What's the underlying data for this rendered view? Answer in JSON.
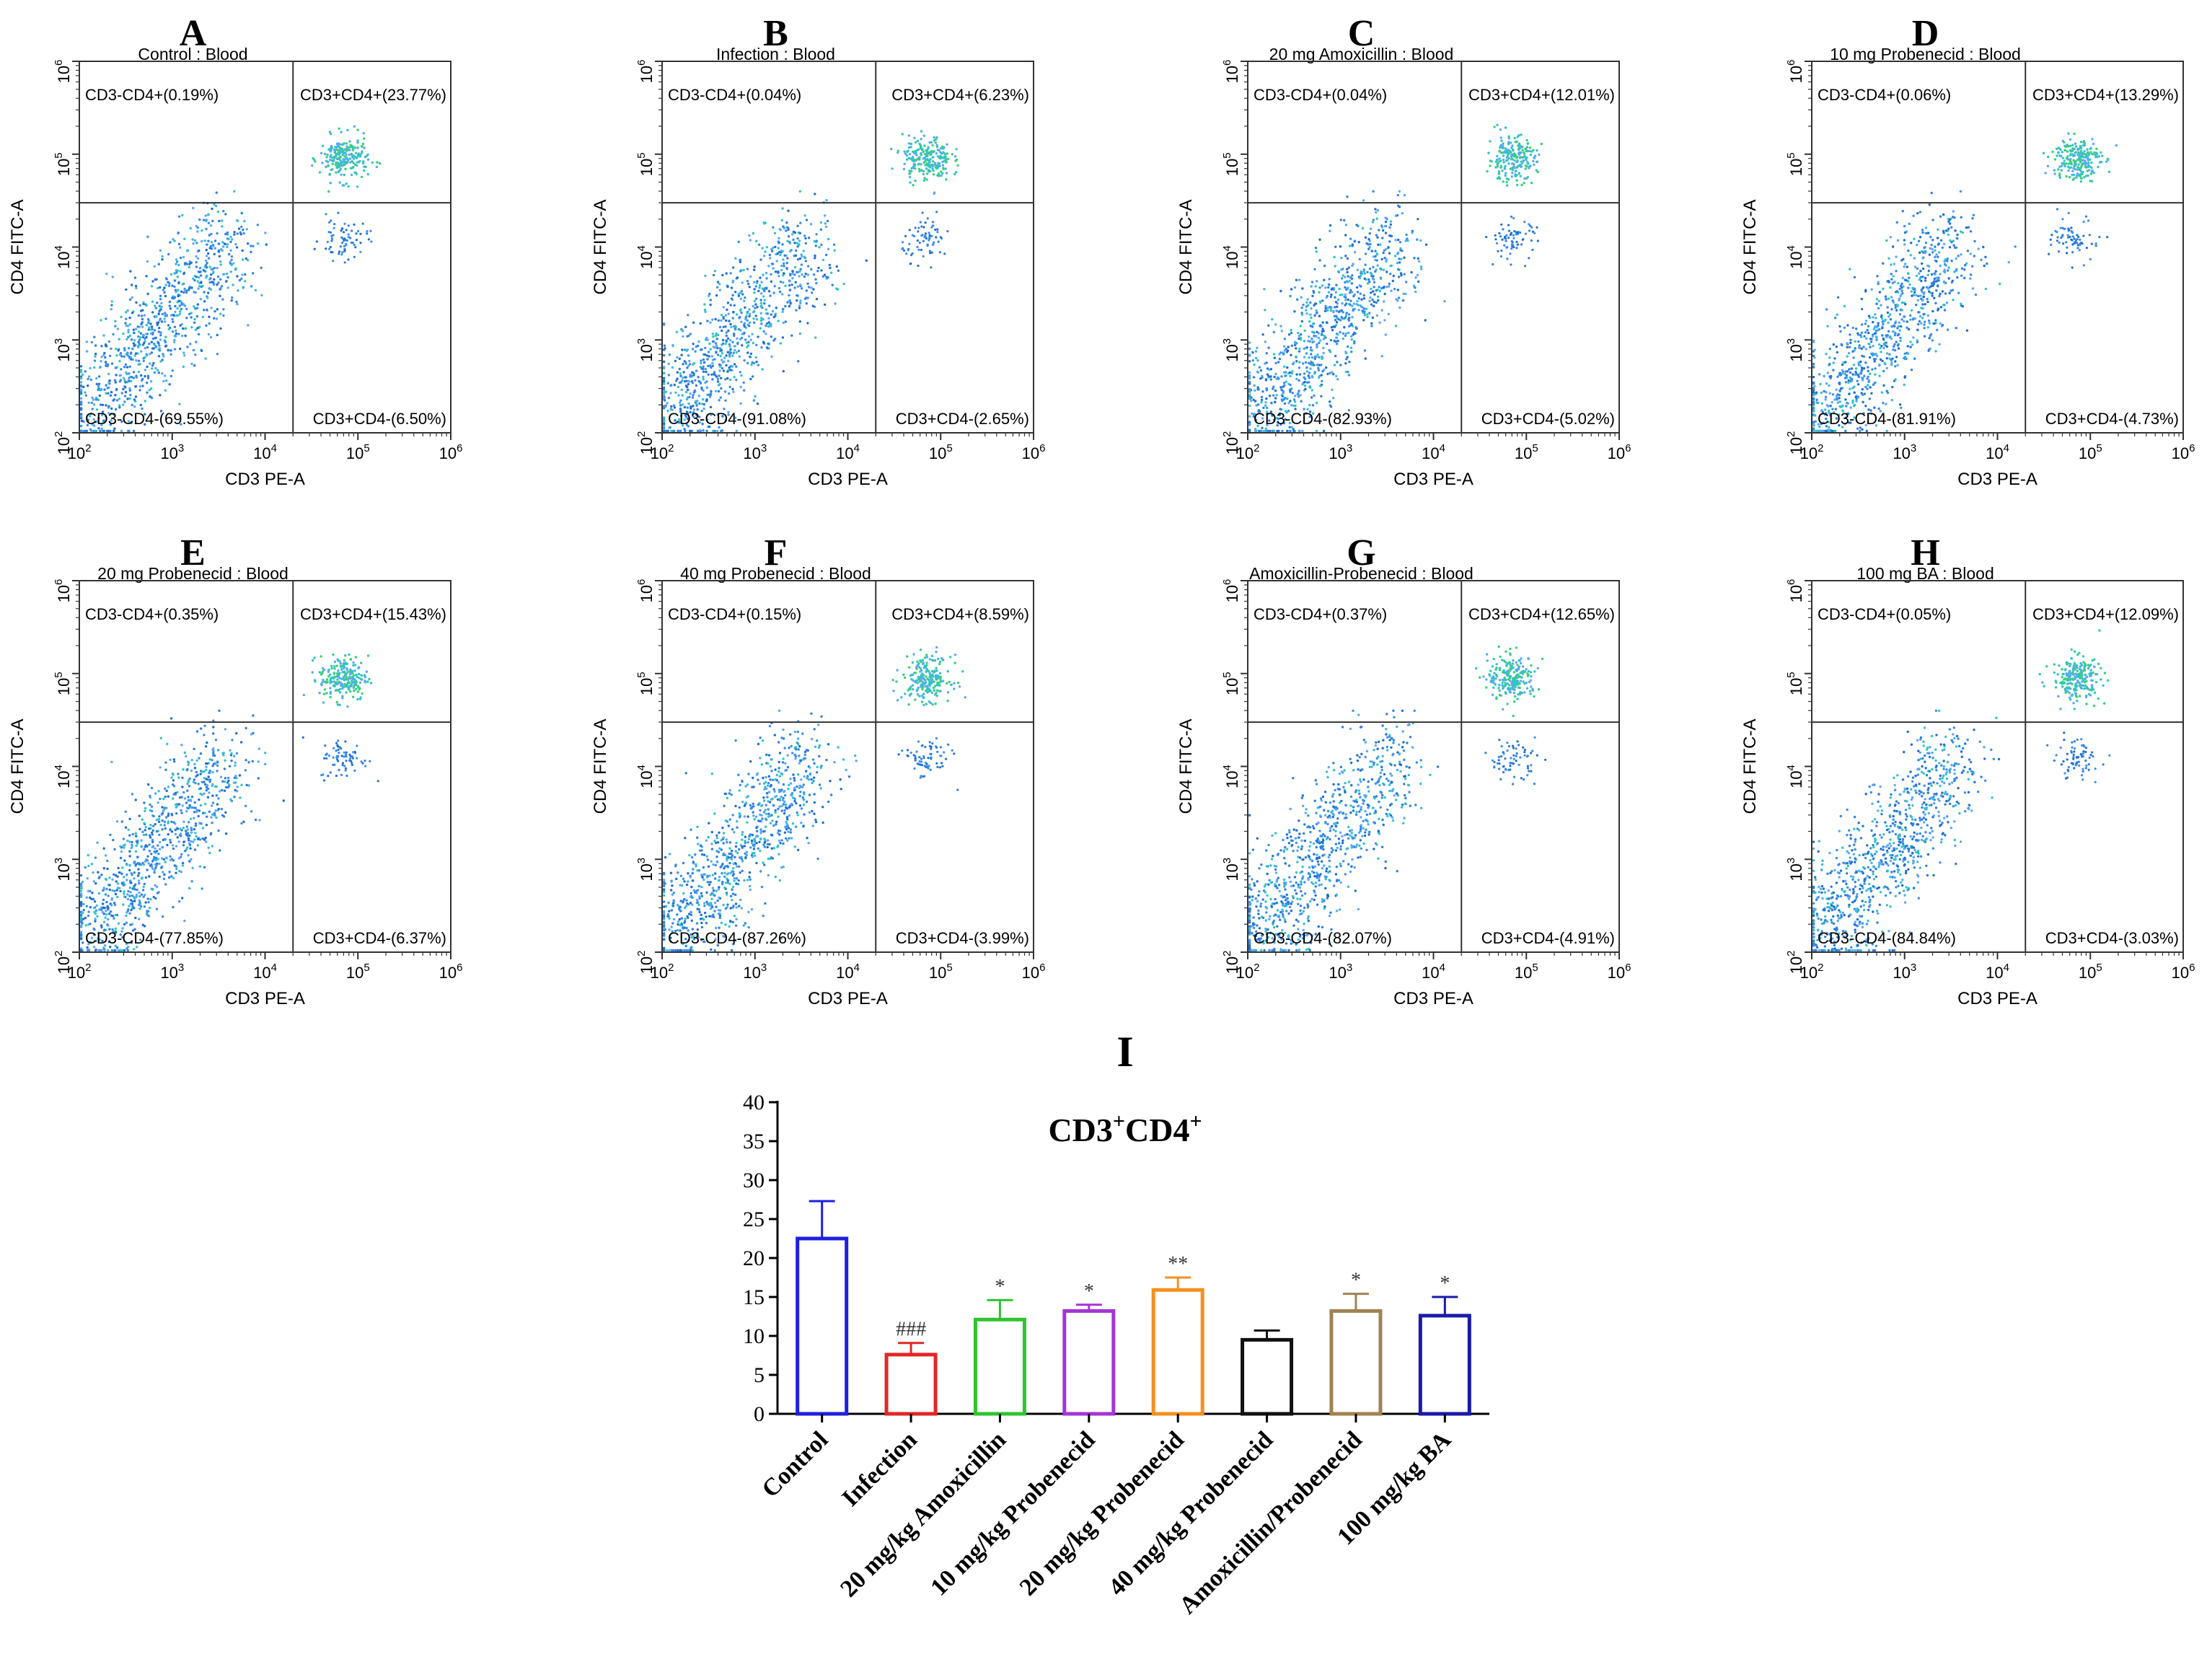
{
  "chart_data": [
    {
      "type": "scatter",
      "panel_letter": "A",
      "title": "Control : Blood",
      "xlabel": "CD3 PE-A",
      "ylabel": "CD4 FITC-A",
      "x_ticks": [
        "10",
        "10",
        "10",
        "10",
        "10"
      ],
      "x_tick_exps": [
        "2",
        "3",
        "4",
        "5",
        "6"
      ],
      "y_ticks": [
        "10",
        "10",
        "10",
        "10",
        "10"
      ],
      "y_tick_exps": [
        "2",
        "3",
        "4",
        "5",
        "6"
      ],
      "axis_scale": "log",
      "xlim": [
        100,
        1000000
      ],
      "ylim": [
        100,
        1000000
      ],
      "gates": {
        "x": 20000,
        "y": 30000
      },
      "quadrants": {
        "top_left": "CD3-CD4+(0.19%)",
        "top_right": "CD3+CD4+(23.77%)",
        "bottom_left": "CD3-CD4-(69.55%)",
        "bottom_right": "CD3+CD4-(6.50%)"
      }
    },
    {
      "type": "scatter",
      "panel_letter": "B",
      "title": "Infection : Blood",
      "xlabel": "CD3 PE-A",
      "ylabel": "CD4 FITC-A",
      "x_ticks": [
        "10",
        "10",
        "10",
        "10",
        "10"
      ],
      "x_tick_exps": [
        "2",
        "3",
        "4",
        "5",
        "6"
      ],
      "y_ticks": [
        "10",
        "10",
        "10",
        "10",
        "10"
      ],
      "y_tick_exps": [
        "2",
        "3",
        "4",
        "5",
        "6"
      ],
      "axis_scale": "log",
      "xlim": [
        100,
        1000000
      ],
      "ylim": [
        100,
        1000000
      ],
      "gates": {
        "x": 20000,
        "y": 30000
      },
      "quadrants": {
        "top_left": "CD3-CD4+(0.04%)",
        "top_right": "CD3+CD4+(6.23%)",
        "bottom_left": "CD3-CD4-(91.08%)",
        "bottom_right": "CD3+CD4-(2.65%)"
      }
    },
    {
      "type": "scatter",
      "panel_letter": "C",
      "title": "20 mg Amoxicillin : Blood",
      "xlabel": "CD3 PE-A",
      "ylabel": "CD4 FITC-A",
      "x_ticks": [
        "10",
        "10",
        "10",
        "10",
        "10"
      ],
      "x_tick_exps": [
        "2",
        "3",
        "4",
        "5",
        "6"
      ],
      "y_ticks": [
        "10",
        "10",
        "10",
        "10",
        "10"
      ],
      "y_tick_exps": [
        "2",
        "3",
        "4",
        "5",
        "6"
      ],
      "axis_scale": "log",
      "xlim": [
        100,
        1000000
      ],
      "ylim": [
        100,
        1000000
      ],
      "gates": {
        "x": 20000,
        "y": 30000
      },
      "quadrants": {
        "top_left": "CD3-CD4+(0.04%)",
        "top_right": "CD3+CD4+(12.01%)",
        "bottom_left": "CD3-CD4-(82.93%)",
        "bottom_right": "CD3+CD4-(5.02%)"
      }
    },
    {
      "type": "scatter",
      "panel_letter": "D",
      "title": "10 mg Probenecid : Blood",
      "xlabel": "CD3 PE-A",
      "ylabel": "CD4 FITC-A",
      "x_ticks": [
        "10",
        "10",
        "10",
        "10",
        "10"
      ],
      "x_tick_exps": [
        "2",
        "3",
        "4",
        "5",
        "6"
      ],
      "y_ticks": [
        "10",
        "10",
        "10",
        "10",
        "10"
      ],
      "y_tick_exps": [
        "2",
        "3",
        "4",
        "5",
        "6"
      ],
      "axis_scale": "log",
      "xlim": [
        100,
        1000000
      ],
      "ylim": [
        100,
        1000000
      ],
      "gates": {
        "x": 20000,
        "y": 30000
      },
      "quadrants": {
        "top_left": "CD3-CD4+(0.06%)",
        "top_right": "CD3+CD4+(13.29%)",
        "bottom_left": "CD3-CD4-(81.91%)",
        "bottom_right": "CD3+CD4-(4.73%)"
      }
    },
    {
      "type": "scatter",
      "panel_letter": "E",
      "title": "20 mg Probenecid : Blood",
      "xlabel": "CD3 PE-A",
      "ylabel": "CD4 FITC-A",
      "x_ticks": [
        "10",
        "10",
        "10",
        "10",
        "10"
      ],
      "x_tick_exps": [
        "2",
        "3",
        "4",
        "5",
        "6"
      ],
      "y_ticks": [
        "10",
        "10",
        "10",
        "10",
        "10"
      ],
      "y_tick_exps": [
        "2",
        "3",
        "4",
        "5",
        "6"
      ],
      "axis_scale": "log",
      "xlim": [
        100,
        1000000
      ],
      "ylim": [
        100,
        1000000
      ],
      "gates": {
        "x": 20000,
        "y": 30000
      },
      "quadrants": {
        "top_left": "CD3-CD4+(0.35%)",
        "top_right": "CD3+CD4+(15.43%)",
        "bottom_left": "CD3-CD4-(77.85%)",
        "bottom_right": "CD3+CD4-(6.37%)"
      }
    },
    {
      "type": "scatter",
      "panel_letter": "F",
      "title": "40 mg Probenecid : Blood",
      "xlabel": "CD3 PE-A",
      "ylabel": "CD4 FITC-A",
      "x_ticks": [
        "10",
        "10",
        "10",
        "10",
        "10"
      ],
      "x_tick_exps": [
        "2",
        "3",
        "4",
        "5",
        "6"
      ],
      "y_ticks": [
        "10",
        "10",
        "10",
        "10",
        "10"
      ],
      "y_tick_exps": [
        "2",
        "3",
        "4",
        "5",
        "6"
      ],
      "axis_scale": "log",
      "xlim": [
        100,
        1000000
      ],
      "ylim": [
        100,
        1000000
      ],
      "gates": {
        "x": 20000,
        "y": 30000
      },
      "quadrants": {
        "top_left": "CD3-CD4+(0.15%)",
        "top_right": "CD3+CD4+(8.59%)",
        "bottom_left": "CD3-CD4-(87.26%)",
        "bottom_right": "CD3+CD4-(3.99%)"
      }
    },
    {
      "type": "scatter",
      "panel_letter": "G",
      "title": "Amoxicillin-Probenecid : Blood",
      "xlabel": "CD3 PE-A",
      "ylabel": "CD4 FITC-A",
      "x_ticks": [
        "10",
        "10",
        "10",
        "10",
        "10"
      ],
      "x_tick_exps": [
        "2",
        "3",
        "4",
        "5",
        "6"
      ],
      "y_ticks": [
        "10",
        "10",
        "10",
        "10",
        "10"
      ],
      "y_tick_exps": [
        "2",
        "3",
        "4",
        "5",
        "6"
      ],
      "axis_scale": "log",
      "xlim": [
        100,
        1000000
      ],
      "ylim": [
        100,
        1000000
      ],
      "gates": {
        "x": 20000,
        "y": 30000
      },
      "quadrants": {
        "top_left": "CD3-CD4+(0.37%)",
        "top_right": "CD3+CD4+(12.65%)",
        "bottom_left": "CD3-CD4-(82.07%)",
        "bottom_right": "CD3+CD4-(4.91%)"
      }
    },
    {
      "type": "scatter",
      "panel_letter": "H",
      "title": "100 mg BA : Blood",
      "xlabel": "CD3 PE-A",
      "ylabel": "CD4 FITC-A",
      "x_ticks": [
        "10",
        "10",
        "10",
        "10",
        "10"
      ],
      "x_tick_exps": [
        "2",
        "3",
        "4",
        "5",
        "6"
      ],
      "y_ticks": [
        "10",
        "10",
        "10",
        "10",
        "10"
      ],
      "y_tick_exps": [
        "2",
        "3",
        "4",
        "5",
        "6"
      ],
      "axis_scale": "log",
      "xlim": [
        100,
        1000000
      ],
      "ylim": [
        100,
        1000000
      ],
      "gates": {
        "x": 20000,
        "y": 30000
      },
      "quadrants": {
        "top_left": "CD3-CD4+(0.05%)",
        "top_right": "CD3+CD4+(12.09%)",
        "bottom_left": "CD3-CD4-(84.84%)",
        "bottom_right": "CD3+CD4-(3.03%)"
      }
    },
    {
      "type": "bar",
      "panel_letter": "I",
      "title_parts": [
        "CD3",
        "+",
        "CD4",
        "+"
      ],
      "categories": [
        "Control",
        "Infection",
        "20 mg/kg Amoxicillin",
        "10 mg/kg Probenecid",
        "20 mg/kg Probenecid",
        "40 mg/kg Probenecid",
        "Amoxicillin/Probenecid",
        "100 mg/kg BA"
      ],
      "values": [
        22.5,
        7.6,
        12.1,
        13.2,
        15.9,
        9.5,
        13.2,
        12.6
      ],
      "errors": [
        4.8,
        1.5,
        2.5,
        0.8,
        1.6,
        1.2,
        2.2,
        2.4
      ],
      "colors": [
        "#1f1fe0",
        "#e32626",
        "#2ec42e",
        "#a335d6",
        "#f5901f",
        "#111111",
        "#a08254",
        "#1a1aa8"
      ],
      "annotations": [
        "",
        "###",
        "*",
        "*",
        "**",
        "",
        "*",
        "*"
      ],
      "y_ticks": [
        "0",
        "5",
        "10",
        "15",
        "20",
        "25",
        "30",
        "35",
        "40"
      ],
      "ylim": [
        0,
        40
      ],
      "xlabel": "",
      "ylabel": ""
    }
  ]
}
